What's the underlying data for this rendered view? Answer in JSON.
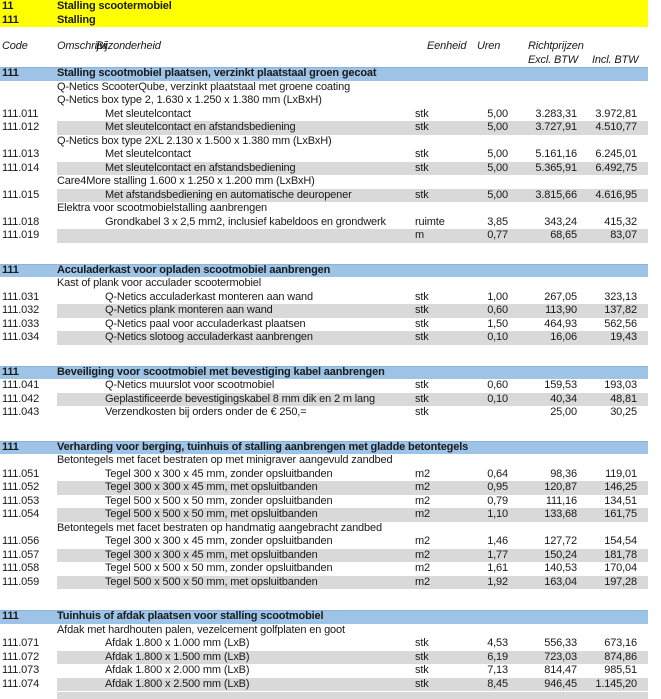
{
  "title_rows": [
    {
      "code": "11",
      "label": "Stalling scootermobiel"
    },
    {
      "code": "111",
      "label": "Stalling"
    }
  ],
  "columns": {
    "code": "Code",
    "omschrijving": "Omschrijvi",
    "bijzonderheid": "Bijzonderheid",
    "eenheid": "Eenheid",
    "uren": "Uren",
    "richtprijzen": "Richtprijzen",
    "excl_btw": "Excl. BTW",
    "incl_btw": "Incl. BTW"
  },
  "colors": {
    "highlight_yellow": "#FFFF00",
    "section_bar_blue": "#9DC3E6",
    "row_stripe_gray": "#D9D9D9",
    "text": "#1a1a1a"
  },
  "sections": [
    {
      "code": "111",
      "title": "Stalling scootmobiel plaatsen, verzinkt plaatstaal groen gecoat",
      "rows": [
        {
          "type": "group",
          "text": "Q-Netics ScooterQube, verzinkt plaatstaal met groene coating"
        },
        {
          "type": "group",
          "text": "Q-Netics box type 2, 1.630 x 1.250 x 1.380 mm (LxBxH)"
        },
        {
          "type": "item",
          "code": "111.011",
          "desc": "Met sleutelcontact",
          "eenheid": "stk",
          "uren": "5,00",
          "excl": "3.283,31",
          "incl": "3.972,81",
          "shaded": false
        },
        {
          "type": "item",
          "code": "111.012",
          "desc": "Met sleutelcontact en afstandsbediening",
          "eenheid": "stk",
          "uren": "5,00",
          "excl": "3.727,91",
          "incl": "4.510,77",
          "shaded": true
        },
        {
          "type": "group",
          "text": "Q-Netics box type 2XL 2.130 x 1.500 x 1.380 mm (LxBxH)"
        },
        {
          "type": "item",
          "code": "111.013",
          "desc": "Met sleutelcontact",
          "eenheid": "stk",
          "uren": "5,00",
          "excl": "5.161,16",
          "incl": "6.245,01",
          "shaded": false
        },
        {
          "type": "item",
          "code": "111.014",
          "desc": "Met sleutelcontact en afstandsbediening",
          "eenheid": "stk",
          "uren": "5,00",
          "excl": "5.365,91",
          "incl": "6.492,75",
          "shaded": true
        },
        {
          "type": "group",
          "text": "Care4More stalling 1.600 x 1.250 x 1.200 mm (LxBxH)"
        },
        {
          "type": "item",
          "code": "111.015",
          "desc": "Met afstandsbediening en automatische deuropener",
          "eenheid": "stk",
          "uren": "5,00",
          "excl": "3.815,66",
          "incl": "4.616,95",
          "shaded": true
        },
        {
          "type": "group",
          "text": "Elektra voor scootmobielstalling aanbrengen"
        },
        {
          "type": "item",
          "code": "111.018",
          "desc": "Grondkabel 3 x 2,5 mm2, inclusief kabeldoos en grondwerk",
          "eenheid": "ruimte",
          "uren": "3,85",
          "excl": "343,24",
          "incl": "415,32",
          "shaded": false
        },
        {
          "type": "item",
          "code": "111.019",
          "desc": "",
          "eenheid": "m",
          "uren": "0,77",
          "excl": "68,65",
          "incl": "83,07",
          "shaded": true
        }
      ]
    },
    {
      "code": "111",
      "title": "Acculaderkast voor opladen scootmobiel aanbrengen",
      "rows": [
        {
          "type": "group",
          "text": "Kast of plank voor acculader scootermobiel"
        },
        {
          "type": "item",
          "code": "111.031",
          "desc": "Q-Netics acculaderkast monteren aan wand",
          "eenheid": "stk",
          "uren": "1,00",
          "excl": "267,05",
          "incl": "323,13",
          "shaded": false
        },
        {
          "type": "item",
          "code": "111.032",
          "desc": "Q-Netics plank monteren aan wand",
          "eenheid": "stk",
          "uren": "0,60",
          "excl": "113,90",
          "incl": "137,82",
          "shaded": true
        },
        {
          "type": "item",
          "code": "111.033",
          "desc": "Q-Netics paal voor acculaderkast plaatsen",
          "eenheid": "stk",
          "uren": "1,50",
          "excl": "464,93",
          "incl": "562,56",
          "shaded": false
        },
        {
          "type": "item",
          "code": "111.034",
          "desc": "Q-Netics slotoog acculaderkast aanbrengen",
          "eenheid": "stk",
          "uren": "0,10",
          "excl": "16,06",
          "incl": "19,43",
          "shaded": true
        }
      ]
    },
    {
      "code": "111",
      "title": "Beveiliging voor scootmobiel met bevestiging kabel aanbrengen",
      "rows": [
        {
          "type": "item",
          "code": "111.041",
          "desc": "Q-Netics muurslot voor scootmobiel",
          "eenheid": "stk",
          "uren": "0,60",
          "excl": "159,53",
          "incl": "193,03",
          "shaded": false
        },
        {
          "type": "item",
          "code": "111.042",
          "desc": "Geplastificeerde bevestigingskabel 8 mm dik en 2 m lang",
          "eenheid": "stk",
          "uren": "0,10",
          "excl": "40,34",
          "incl": "48,81",
          "shaded": true
        },
        {
          "type": "item",
          "code": "111.043",
          "desc": "Verzendkosten bij orders onder de € 250,=",
          "eenheid": "stk",
          "uren": "",
          "excl": "25,00",
          "incl": "30,25",
          "shaded": false
        }
      ]
    },
    {
      "code": "111",
      "title": "Verharding voor berging, tuinhuis of stalling aanbrengen met gladde betontegels",
      "rows": [
        {
          "type": "group",
          "text": "Betontegels met facet bestraten op met minigraver aangevuld zandbed"
        },
        {
          "type": "item",
          "code": "111.051",
          "desc": "Tegel 300 x 300 x 45 mm, zonder opsluitbanden",
          "eenheid": "m2",
          "uren": "0,64",
          "excl": "98,36",
          "incl": "119,01",
          "shaded": false
        },
        {
          "type": "item",
          "code": "111.052",
          "desc": "Tegel 300 x 300 x 45 mm, met opsluitbanden",
          "eenheid": "m2",
          "uren": "0,95",
          "excl": "120,87",
          "incl": "146,25",
          "shaded": true
        },
        {
          "type": "item",
          "code": "111.053",
          "desc": "Tegel 500 x 500 x 50 mm, zonder opsluitbanden",
          "eenheid": "m2",
          "uren": "0,79",
          "excl": "111,16",
          "incl": "134,51",
          "shaded": false
        },
        {
          "type": "item",
          "code": "111.054",
          "desc": "Tegel 500 x 500 x 50 mm, met opsluitbanden",
          "eenheid": "m2",
          "uren": "1,10",
          "excl": "133,68",
          "incl": "161,75",
          "shaded": true
        },
        {
          "type": "group",
          "text": "Betontegels met facet bestraten op handmatig aangebracht zandbed"
        },
        {
          "type": "item",
          "code": "111.056",
          "desc": "Tegel 300 x 300 x 45 mm, zonder opsluitbanden",
          "eenheid": "m2",
          "uren": "1,46",
          "excl": "127,72",
          "incl": "154,54",
          "shaded": false
        },
        {
          "type": "item",
          "code": "111.057",
          "desc": "Tegel 300 x 300 x 45 mm, met opsluitbanden",
          "eenheid": "m2",
          "uren": "1,77",
          "excl": "150,24",
          "incl": "181,78",
          "shaded": true
        },
        {
          "type": "item",
          "code": "111.058",
          "desc": "Tegel 500 x 500 x 50 mm, zonder opsluitbanden",
          "eenheid": "m2",
          "uren": "1,61",
          "excl": "140,53",
          "incl": "170,04",
          "shaded": false
        },
        {
          "type": "item",
          "code": "111.059",
          "desc": "Tegel 500 x 500 x 50 mm, met opsluitbanden",
          "eenheid": "m2",
          "uren": "1,92",
          "excl": "163,04",
          "incl": "197,28",
          "shaded": true
        }
      ]
    },
    {
      "code": "111",
      "title": "Tuinhuis of afdak plaatsen voor stalling scootmobiel",
      "rows": [
        {
          "type": "group",
          "text": "Afdak met hardhouten palen, vezelcement golfplaten en goot"
        },
        {
          "type": "item",
          "code": "111.071",
          "desc": "Afdak 1.800 x 1.000 mm (LxB)",
          "eenheid": "stk",
          "uren": "4,53",
          "excl": "556,33",
          "incl": "673,16",
          "shaded": false
        },
        {
          "type": "item",
          "code": "111.072",
          "desc": "Afdak 1.800 x 1.500 mm (LxB)",
          "eenheid": "stk",
          "uren": "6,19",
          "excl": "723,03",
          "incl": "874,86",
          "shaded": true
        },
        {
          "type": "item",
          "code": "111.073",
          "desc": "Afdak 1.800 x 2.000 mm (LxB)",
          "eenheid": "stk",
          "uren": "7,13",
          "excl": "814,47",
          "incl": "985,51",
          "shaded": false
        },
        {
          "type": "item",
          "code": "111.074",
          "desc": "Afdak 1.800 x 2.500 mm (LxB)",
          "eenheid": "stk",
          "uren": "8,45",
          "excl": "946,45",
          "incl": "1.145,20",
          "shaded": true
        }
      ]
    }
  ]
}
